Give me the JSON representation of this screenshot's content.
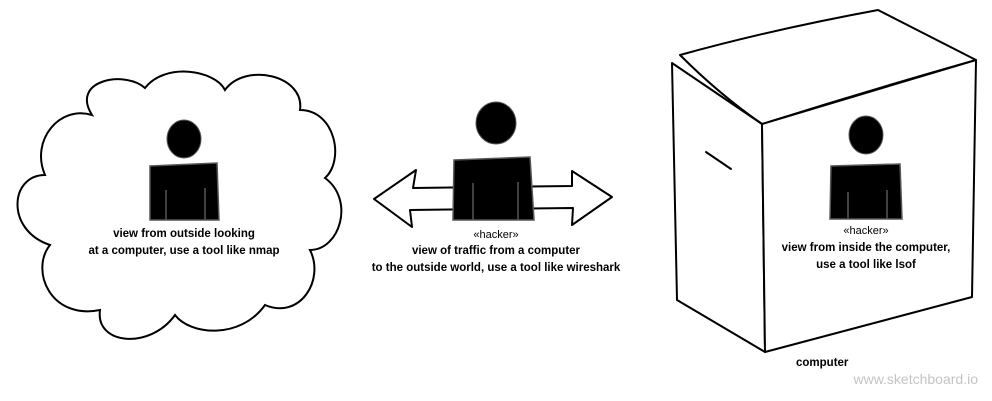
{
  "cloud": {
    "label_line1": "view from outside looking",
    "label_line2": "at a computer, use a tool like nmap"
  },
  "traffic": {
    "stereotype": "«hacker»",
    "label_line1": "view of traffic from a computer",
    "label_line2": "to the outside world, use a tool like wireshark"
  },
  "inside": {
    "stereotype": "«hacker»",
    "label_line1": "view from inside the computer,",
    "label_line2": "use a tool like lsof"
  },
  "computer": {
    "label": "computer"
  },
  "watermark": "www.sketchboard.io",
  "colors": {
    "stroke": "#000000",
    "figure_fill": "#000000",
    "figure_edge": "#555555",
    "watermark": "#c4c4c4"
  },
  "icons": [
    "cloud-shape",
    "hacker-figure",
    "double-arrow",
    "computer-box"
  ]
}
